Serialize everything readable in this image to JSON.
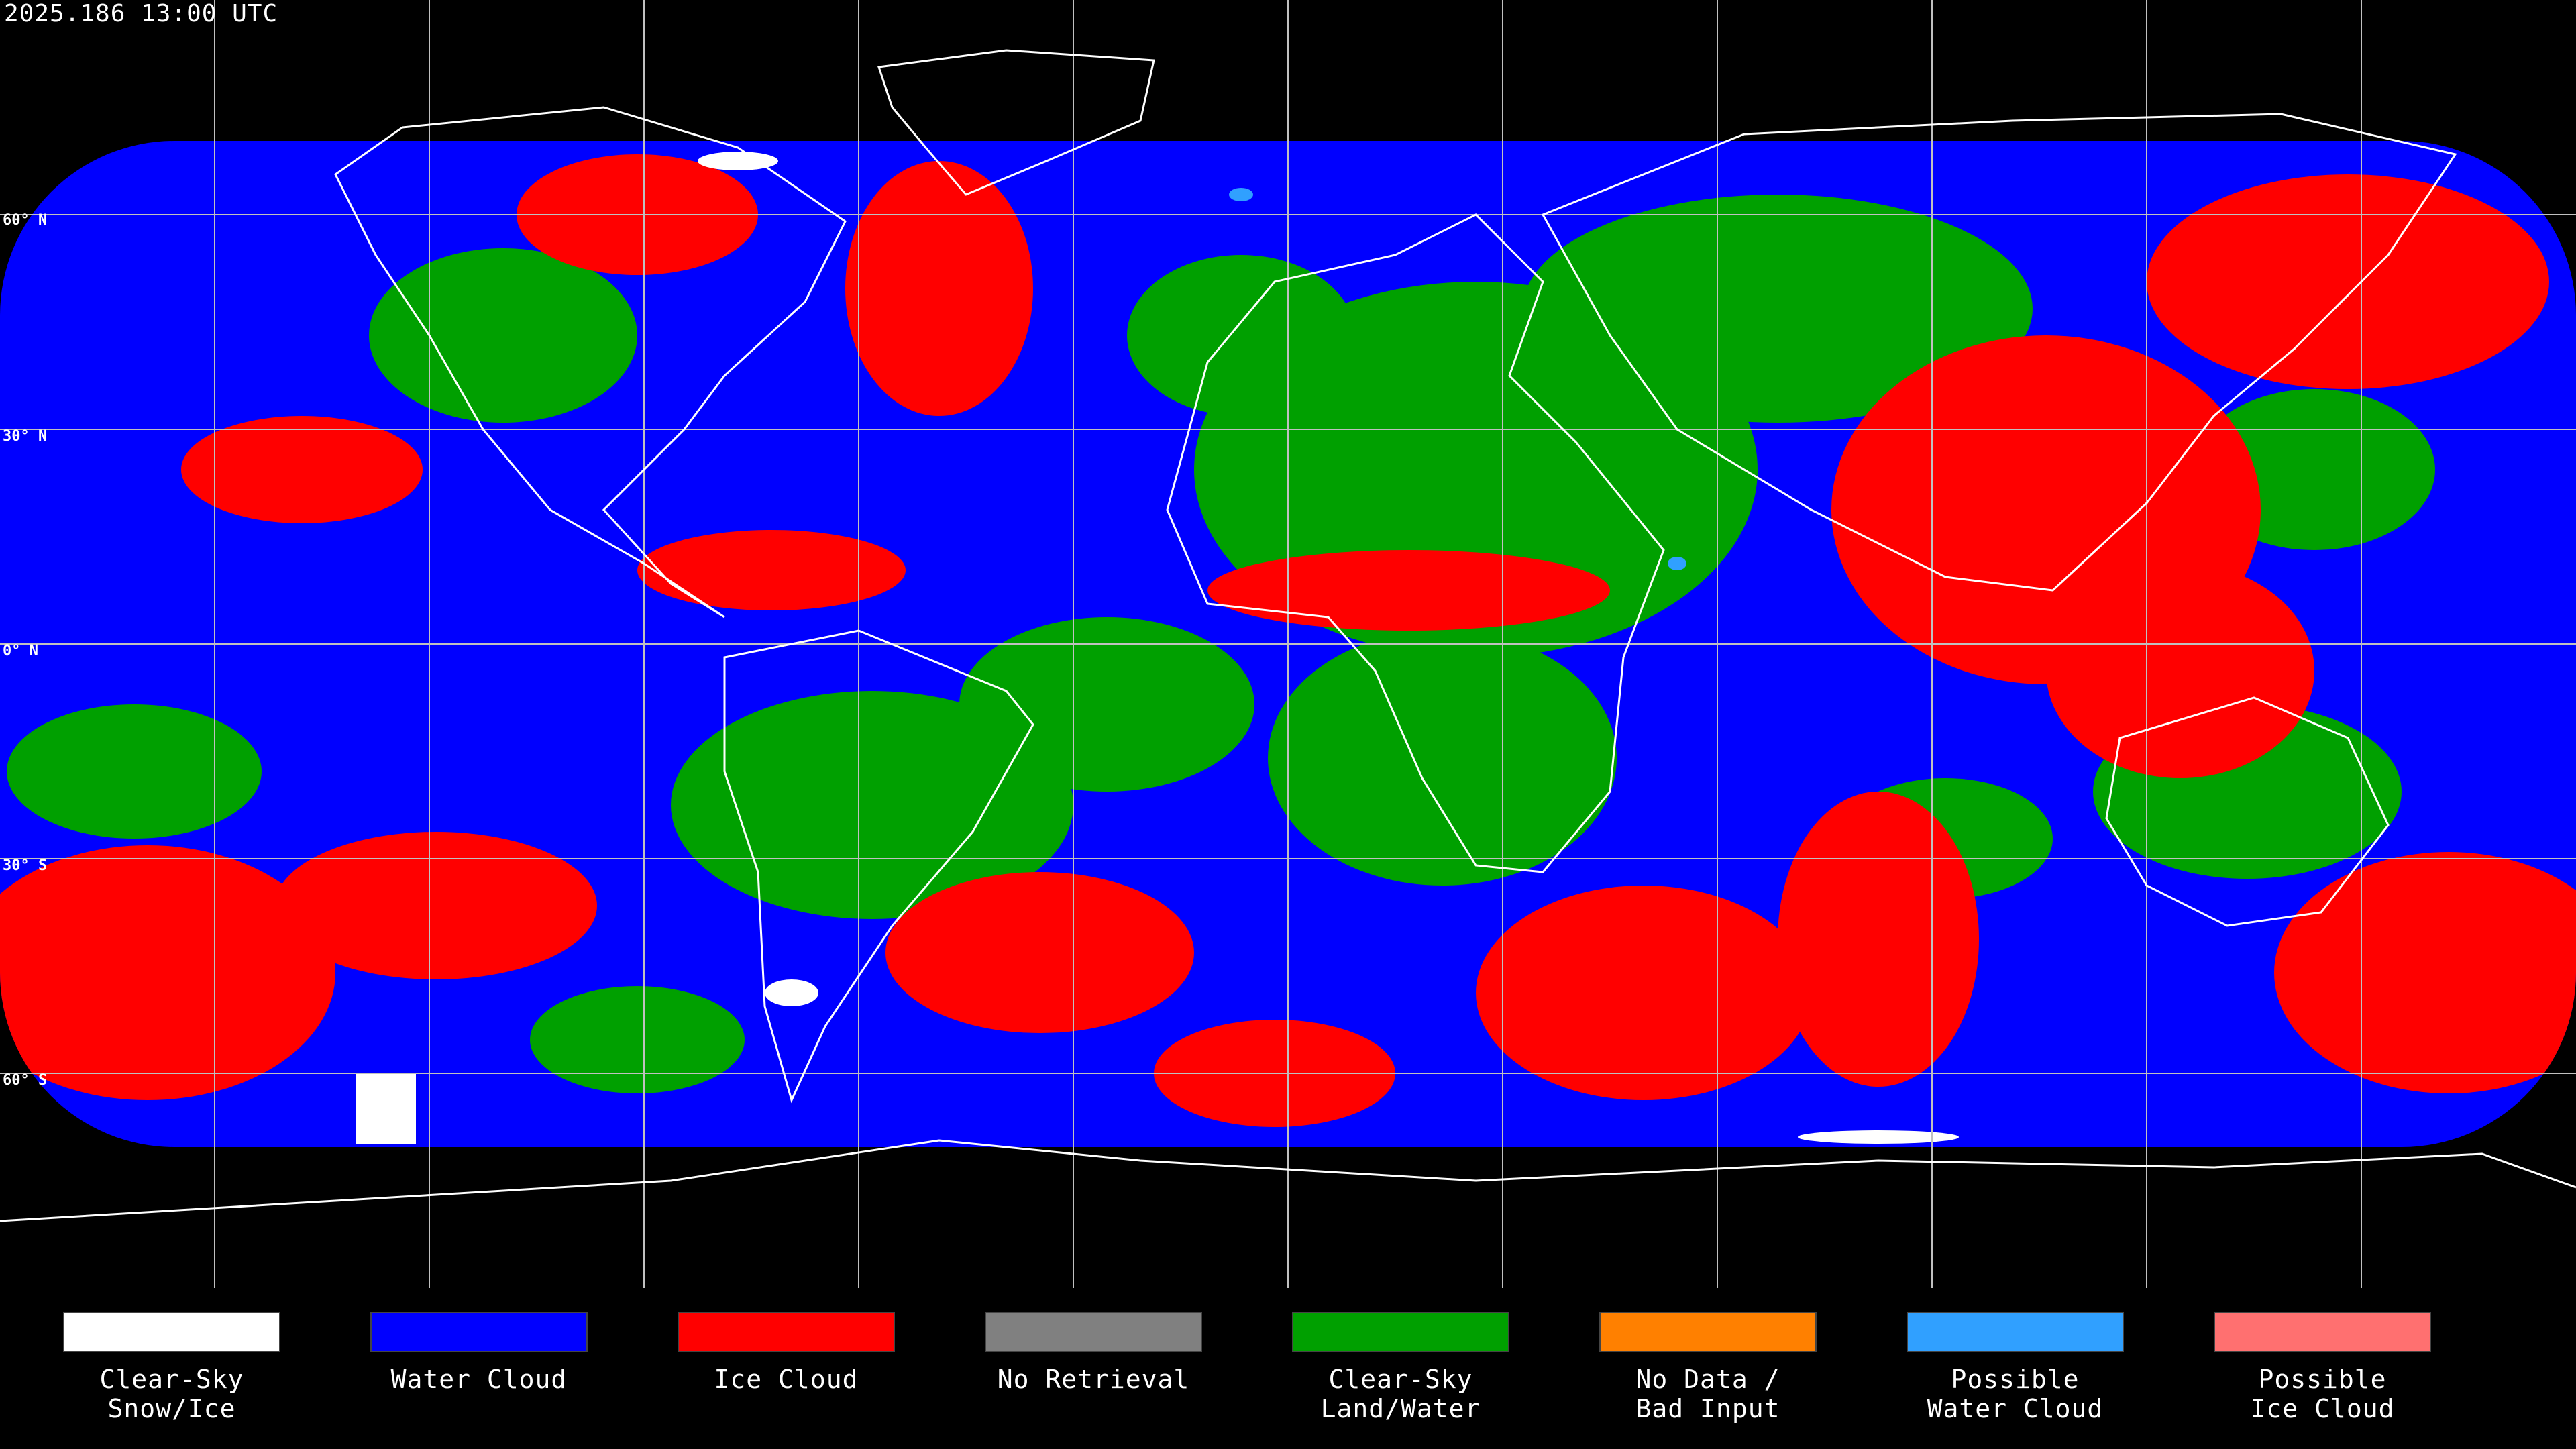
{
  "map": {
    "timestamp": "2025.186 13:00 UTC",
    "latitude_labels": [
      "60° N",
      "30° N",
      "0° N",
      "30° S",
      "60° S"
    ]
  },
  "legend": {
    "items": [
      {
        "line1": "Clear-Sky",
        "line2": "Snow/Ice",
        "color": "#ffffff"
      },
      {
        "line1": "Water Cloud",
        "line2": "",
        "color": "#0000ff"
      },
      {
        "line1": "Ice Cloud",
        "line2": "",
        "color": "#ff0000"
      },
      {
        "line1": "No Retrieval",
        "line2": "",
        "color": "#808080"
      },
      {
        "line1": "Clear-Sky",
        "line2": "Land/Water",
        "color": "#00a000"
      },
      {
        "line1": "No Data /",
        "line2": "Bad Input",
        "color": "#ff8000"
      },
      {
        "line1": "Possible",
        "line2": "Water Cloud",
        "color": "#30a0ff"
      },
      {
        "line1": "Possible",
        "line2": "Ice Cloud",
        "color": "#ff7070"
      }
    ]
  }
}
